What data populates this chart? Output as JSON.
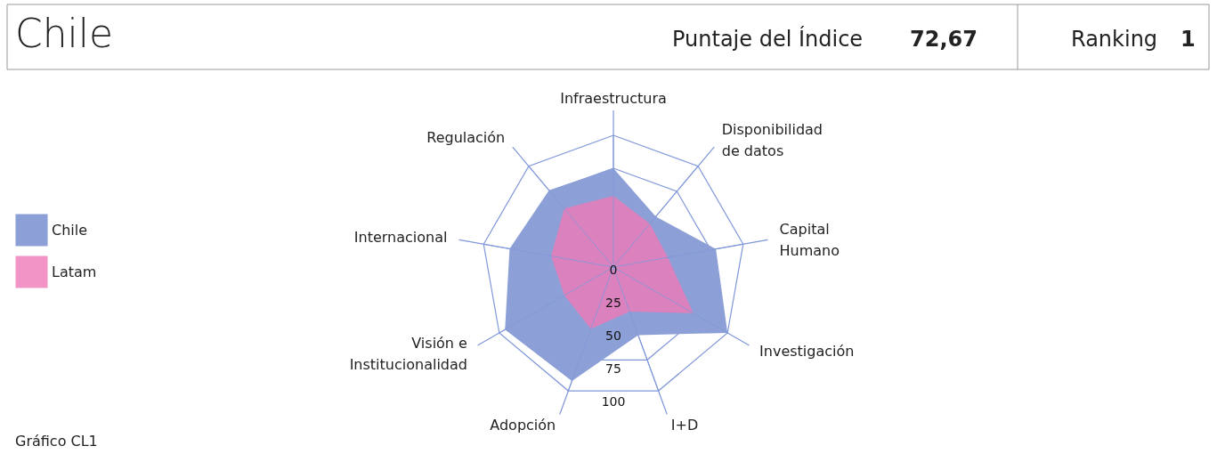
{
  "chart_data": {
    "type": "radar",
    "title": "Chile",
    "annotations": [
      "Puntaje del Índice",
      "72,67",
      "Ranking",
      "1",
      "Gráfico CL1"
    ],
    "categories": [
      "Infraestructura",
      "Disponibilidad\nde datos",
      "Capital\nHumano",
      "Investigación",
      "I+D",
      "Adopción",
      "Visión e\nInstitucionalidad",
      "Internacional",
      "Regulación"
    ],
    "series": [
      {
        "name": "Chile",
        "color": "#8c9fd6",
        "values": [
          75,
          50,
          79,
          100,
          55,
          92,
          95,
          80,
          76
        ]
      },
      {
        "name": "Latam",
        "color": "#ef7ab8",
        "values": [
          54,
          43,
          42,
          70,
          36,
          50,
          43,
          48,
          58
        ]
      }
    ],
    "ylim": [
      0,
      100
    ],
    "yticks": [
      0,
      25,
      50,
      75,
      100
    ],
    "grid": true,
    "legend": "left"
  }
}
